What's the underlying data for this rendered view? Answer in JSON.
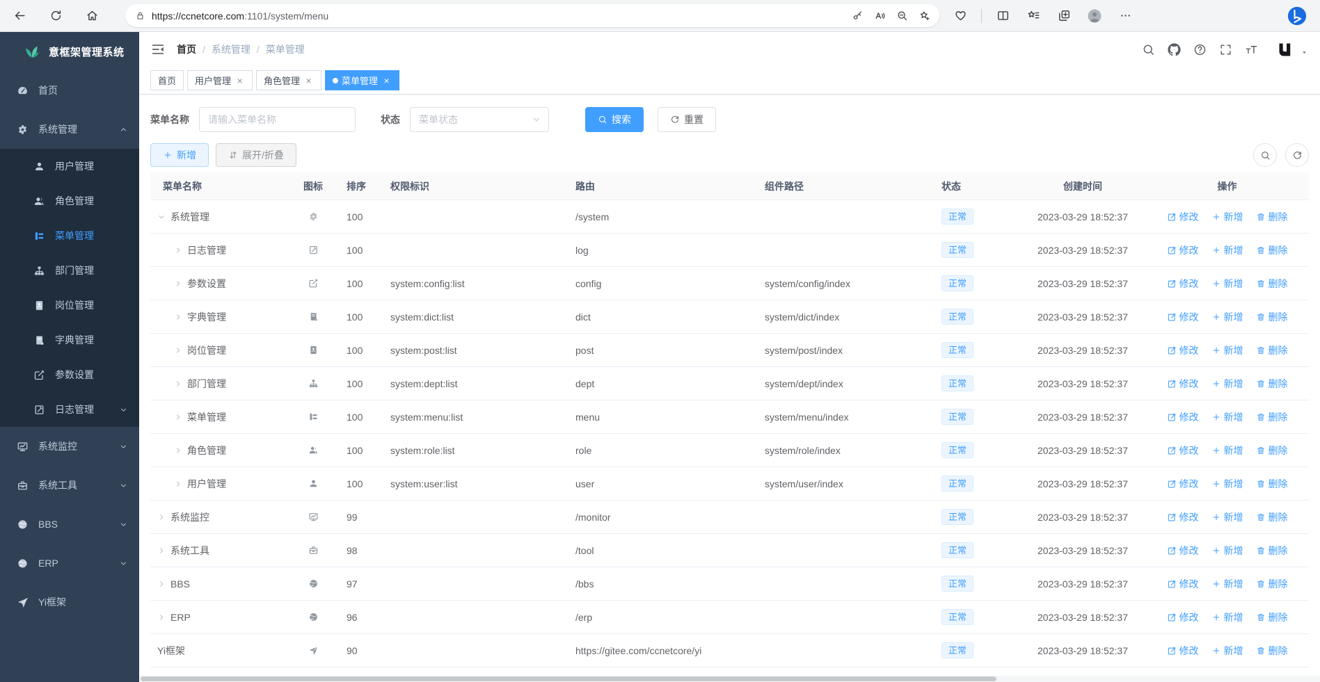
{
  "colors": {
    "accent": "#409eff",
    "sidebar_bg": "#304156",
    "submenu_bg": "#1f2d3d",
    "tag_bg": "#ecf5ff",
    "tag_border": "#d9ecff",
    "active_tab_bg": "#409eff"
  },
  "browser": {
    "url_scheme_host": "https://ccnetcore.com",
    "url_path": ":1101/system/menu",
    "url_full": "https://ccnetcore.com:1101/system/menu",
    "nav_icons": [
      "back",
      "refresh",
      "home"
    ],
    "lock_icon": "lock",
    "urlbar_icons": [
      "key",
      "read-aloud",
      "zoom-out",
      "star-add"
    ],
    "right_icons": [
      "essentials",
      "split-screen",
      "favorites-bar",
      "collections",
      "profile",
      "more"
    ],
    "assistant_icon": "bing"
  },
  "sidebar": {
    "logo": {
      "icon": "leaf-logo",
      "title": "意框架管理系统"
    },
    "items": [
      {
        "key": "home",
        "icon": "dashboard",
        "label": "首页"
      },
      {
        "key": "system",
        "icon": "gear",
        "label": "系统管理",
        "arrow": "up",
        "expanded": true,
        "children": [
          {
            "key": "user",
            "icon": "user",
            "label": "用户管理"
          },
          {
            "key": "role",
            "icon": "users",
            "label": "角色管理"
          },
          {
            "key": "menu",
            "icon": "menu-tree",
            "label": "菜单管理",
            "active": true
          },
          {
            "key": "dept",
            "icon": "org-tree",
            "label": "部门管理"
          },
          {
            "key": "post",
            "icon": "id-badge",
            "label": "岗位管理"
          },
          {
            "key": "dict",
            "icon": "book",
            "label": "字典管理"
          },
          {
            "key": "config",
            "icon": "edit-pen",
            "label": "参数设置"
          },
          {
            "key": "log",
            "icon": "log-doc",
            "label": "日志管理",
            "arrow": "down"
          }
        ]
      },
      {
        "key": "monitor",
        "icon": "monitor",
        "label": "系统监控",
        "arrow": "down"
      },
      {
        "key": "tool",
        "icon": "briefcase",
        "label": "系统工具",
        "arrow": "down"
      },
      {
        "key": "bbs",
        "icon": "globe",
        "label": "BBS",
        "arrow": "down"
      },
      {
        "key": "erp",
        "icon": "globe",
        "label": "ERP",
        "arrow": "down"
      },
      {
        "key": "yi",
        "icon": "paper-plane",
        "label": "Yi框架"
      }
    ]
  },
  "navbar": {
    "fold_icon": "fold",
    "breadcrumb": [
      "首页",
      "系统管理",
      "菜单管理"
    ],
    "separator": "/",
    "action_icons": [
      "search",
      "github",
      "question",
      "fullscreen",
      "font-size"
    ],
    "avatar_icon": "yi-logo",
    "caret_icon": "caret-down"
  },
  "tabs": [
    {
      "label": "首页",
      "closable": false,
      "active": false
    },
    {
      "label": "用户管理",
      "closable": true,
      "active": false
    },
    {
      "label": "角色管理",
      "closable": true,
      "active": false
    },
    {
      "label": "菜单管理",
      "closable": true,
      "active": true
    }
  ],
  "filters": {
    "name_label": "菜单名称",
    "name_placeholder": "请输入菜单名称",
    "status_label": "状态",
    "status_placeholder": "菜单状态",
    "search_button": {
      "label": "搜索",
      "icon": "search"
    },
    "reset_button": {
      "label": "重置",
      "icon": "refresh-round"
    }
  },
  "toolbar": {
    "add_button": {
      "label": "新增",
      "icon": "plus"
    },
    "expand_button": {
      "label": "展开/折叠",
      "icon": "sort-vert"
    },
    "mini_buttons": [
      "search",
      "refresh-round"
    ]
  },
  "table": {
    "columns": [
      "菜单名称",
      "图标",
      "排序",
      "权限标识",
      "路由",
      "组件路径",
      "状态",
      "创建时间",
      "操作"
    ],
    "actions": [
      {
        "key": "edit",
        "label": "修改",
        "icon": "edit-sq"
      },
      {
        "key": "add",
        "label": "新增",
        "icon": "plus"
      },
      {
        "key": "delete",
        "label": "删除",
        "icon": "trash"
      }
    ],
    "rows": [
      {
        "name": "系统管理",
        "level": 0,
        "expand": "open",
        "icon": "gear",
        "sort": "100",
        "perm": "",
        "route": "/system",
        "component": "",
        "status": "正常",
        "created": "2023-03-29 18:52:37"
      },
      {
        "name": "日志管理",
        "level": 1,
        "expand": "closed",
        "icon": "log-doc",
        "sort": "100",
        "perm": "",
        "route": "log",
        "component": "",
        "status": "正常",
        "created": "2023-03-29 18:52:37"
      },
      {
        "name": "参数设置",
        "level": 1,
        "expand": "closed",
        "icon": "edit-pen",
        "sort": "100",
        "perm": "system:config:list",
        "route": "config",
        "component": "system/config/index",
        "status": "正常",
        "created": "2023-03-29 18:52:37"
      },
      {
        "name": "字典管理",
        "level": 1,
        "expand": "closed",
        "icon": "book",
        "sort": "100",
        "perm": "system:dict:list",
        "route": "dict",
        "component": "system/dict/index",
        "status": "正常",
        "created": "2023-03-29 18:52:37"
      },
      {
        "name": "岗位管理",
        "level": 1,
        "expand": "closed",
        "icon": "id-badge",
        "sort": "100",
        "perm": "system:post:list",
        "route": "post",
        "component": "system/post/index",
        "status": "正常",
        "created": "2023-03-29 18:52:37"
      },
      {
        "name": "部门管理",
        "level": 1,
        "expand": "closed",
        "icon": "org-tree",
        "sort": "100",
        "perm": "system:dept:list",
        "route": "dept",
        "component": "system/dept/index",
        "status": "正常",
        "created": "2023-03-29 18:52:37"
      },
      {
        "name": "菜单管理",
        "level": 1,
        "expand": "closed",
        "icon": "menu-tree",
        "sort": "100",
        "perm": "system:menu:list",
        "route": "menu",
        "component": "system/menu/index",
        "status": "正常",
        "created": "2023-03-29 18:52:37"
      },
      {
        "name": "角色管理",
        "level": 1,
        "expand": "closed",
        "icon": "users",
        "sort": "100",
        "perm": "system:role:list",
        "route": "role",
        "component": "system/role/index",
        "status": "正常",
        "created": "2023-03-29 18:52:37"
      },
      {
        "name": "用户管理",
        "level": 1,
        "expand": "closed",
        "icon": "user",
        "sort": "100",
        "perm": "system:user:list",
        "route": "user",
        "component": "system/user/index",
        "status": "正常",
        "created": "2023-03-29 18:52:37"
      },
      {
        "name": "系统监控",
        "level": 0,
        "expand": "closed",
        "icon": "monitor",
        "sort": "99",
        "perm": "",
        "route": "/monitor",
        "component": "",
        "status": "正常",
        "created": "2023-03-29 18:52:37"
      },
      {
        "name": "系统工具",
        "level": 0,
        "expand": "closed",
        "icon": "briefcase",
        "sort": "98",
        "perm": "",
        "route": "/tool",
        "component": "",
        "status": "正常",
        "created": "2023-03-29 18:52:37"
      },
      {
        "name": "BBS",
        "level": 0,
        "expand": "closed",
        "icon": "globe",
        "sort": "97",
        "perm": "",
        "route": "/bbs",
        "component": "",
        "status": "正常",
        "created": "2023-03-29 18:52:37"
      },
      {
        "name": "ERP",
        "level": 0,
        "expand": "closed",
        "icon": "globe",
        "sort": "96",
        "perm": "",
        "route": "/erp",
        "component": "",
        "status": "正常",
        "created": "2023-03-29 18:52:37"
      },
      {
        "name": "Yi框架",
        "level": 0,
        "expand": "none",
        "icon": "paper-plane",
        "sort": "90",
        "perm": "",
        "route": "https://gitee.com/ccnetcore/yi",
        "component": "",
        "status": "正常",
        "created": "2023-03-29 18:52:37"
      }
    ]
  }
}
